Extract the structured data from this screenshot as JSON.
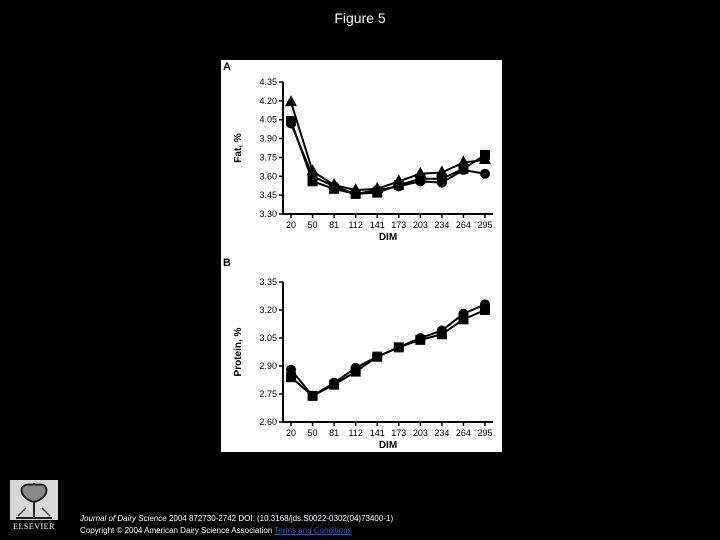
{
  "slide": {
    "title": "Figure 5"
  },
  "chart_data": [
    {
      "type": "line",
      "panel_label": "A",
      "title": "",
      "xlabel": "DIM",
      "ylabel": "Fat, %",
      "categories": [
        "20",
        "50",
        "81",
        "112",
        "141",
        "173",
        "203",
        "234",
        "264",
        "295"
      ],
      "ylim": [
        3.3,
        4.35
      ],
      "yticks": [
        "4.35",
        "4.20",
        "4.05",
        "3.90",
        "3.75",
        "3.60",
        "3.45",
        "3.30"
      ],
      "series": [
        {
          "marker": "triangle",
          "values": [
            4.19,
            3.64,
            3.53,
            3.49,
            3.5,
            3.56,
            3.62,
            3.63,
            3.71,
            3.73
          ]
        },
        {
          "marker": "square",
          "values": [
            4.04,
            3.56,
            3.5,
            3.46,
            3.47,
            3.53,
            3.58,
            3.58,
            3.66,
            3.77
          ]
        },
        {
          "marker": "circle",
          "values": [
            4.02,
            3.6,
            3.52,
            3.46,
            3.49,
            3.52,
            3.56,
            3.55,
            3.65,
            3.62
          ]
        }
      ],
      "grid": false,
      "color": "#000000"
    },
    {
      "type": "line",
      "panel_label": "B",
      "title": "",
      "xlabel": "DIM",
      "ylabel": "Protein, %",
      "categories": [
        "20",
        "50",
        "81",
        "112",
        "141",
        "173",
        "203",
        "234",
        "264",
        "295"
      ],
      "ylim": [
        2.6,
        3.35
      ],
      "yticks": [
        "3.35",
        "3.20",
        "3.05",
        "2.90",
        "2.75",
        "2.60"
      ],
      "series": [
        {
          "marker": "square",
          "values": [
            2.84,
            2.74,
            2.8,
            2.87,
            2.95,
            3.0,
            3.04,
            3.07,
            3.15,
            3.2
          ]
        },
        {
          "marker": "circle",
          "values": [
            2.88,
            2.74,
            2.81,
            2.89,
            2.95,
            3.0,
            3.05,
            3.09,
            3.18,
            3.23
          ]
        }
      ],
      "grid": false,
      "color": "#000000"
    }
  ],
  "footer": {
    "journal": "Journal of Dairy Science",
    "citation": " 2004 872730-2742 DOI: (10.3168/jds.S0022-0302(04)73400-1)",
    "copyright": "Copyright © 2004 American Dairy Science Association ",
    "terms_link": "Terms and Conditions"
  },
  "logo": {
    "text": "ELSEVIER"
  },
  "colors": {
    "background": "#000000",
    "panel": "#ffffff",
    "ink": "#000000",
    "link": "#1a5fd6"
  }
}
